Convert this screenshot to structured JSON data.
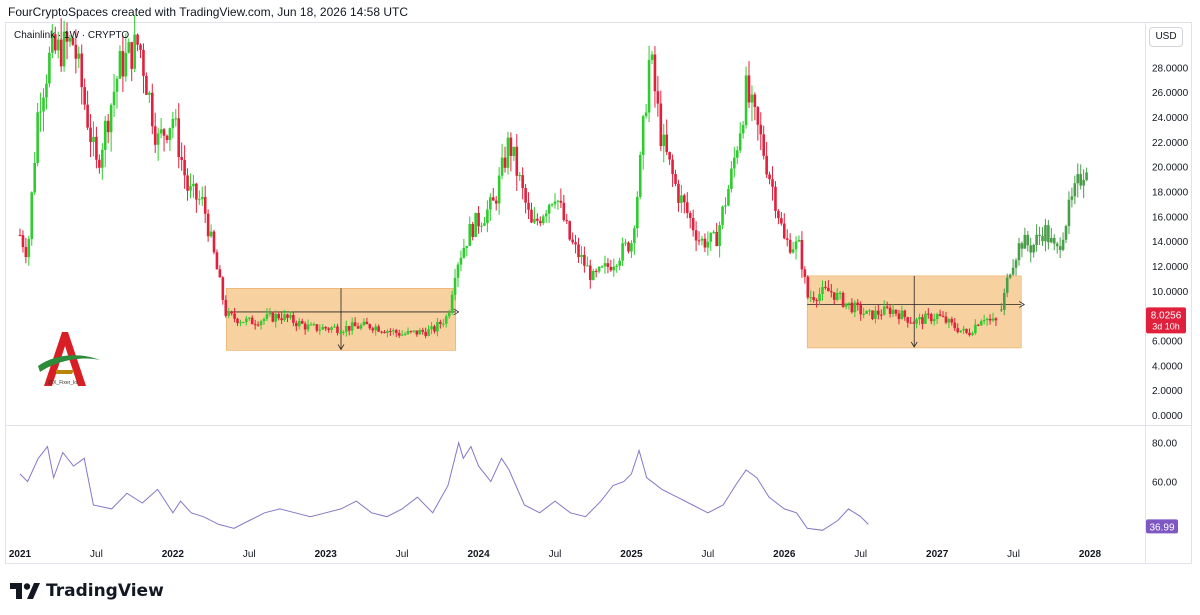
{
  "header_text": "FourCryptoSpaces created with TradingView.com, Jun 18, 2026 14:58 UTC",
  "symbol_label": "Chainlink · 1W · CRYPTO",
  "currency_button": "USD",
  "watermark_text": "@X_Fixer_kv",
  "footer_brand": "TradingView",
  "colors": {
    "up": "#2ecc2e",
    "down": "#e0203c",
    "projection": "#4a9e4a",
    "box": "#f7c990",
    "rsi": "#8478c8",
    "price_tag": "#e0203c",
    "rsi_tag": "#7e57c2"
  },
  "chart_data": [
    {
      "type": "candlestick",
      "title": "Chainlink · 1W · CRYPTO",
      "ylim": [
        0,
        31
      ],
      "y_ticks": [
        "28.0000",
        "26.0000",
        "24.0000",
        "22.0000",
        "20.0000",
        "18.0000",
        "16.0000",
        "14.0000",
        "12.0000",
        "10.0000",
        "6.0000",
        "4.0000",
        "2.0000",
        "0.0000"
      ],
      "x_ticks": [
        "2021",
        "Jul",
        "2022",
        "Jul",
        "2023",
        "Jul",
        "2024",
        "Jul",
        "2025",
        "Jul",
        "2026",
        "Jul",
        "2027",
        "Jul",
        "2028"
      ],
      "x_range_years": [
        2021.0,
        2028.0
      ],
      "price_path": [
        [
          2021.0,
          14.5
        ],
        [
          2021.05,
          13
        ],
        [
          2021.12,
          25
        ],
        [
          2021.2,
          29
        ],
        [
          2021.35,
          30
        ],
        [
          2021.5,
          20
        ],
        [
          2021.65,
          28
        ],
        [
          2021.78,
          30
        ],
        [
          2021.9,
          22
        ],
        [
          2022.0,
          24
        ],
        [
          2022.1,
          18
        ],
        [
          2022.2,
          17
        ],
        [
          2022.3,
          11
        ],
        [
          2022.35,
          8
        ],
        [
          2022.5,
          7.5
        ],
        [
          2022.7,
          8
        ],
        [
          2022.9,
          7
        ],
        [
          2023.1,
          7
        ],
        [
          2023.3,
          7.2
        ],
        [
          2023.5,
          6.5
        ],
        [
          2023.7,
          6.8
        ],
        [
          2023.8,
          8
        ],
        [
          2023.85,
          12
        ],
        [
          2023.95,
          15
        ],
        [
          2024.1,
          17
        ],
        [
          2024.2,
          22
        ],
        [
          2024.35,
          15
        ],
        [
          2024.5,
          18
        ],
        [
          2024.6,
          14
        ],
        [
          2024.75,
          11
        ],
        [
          2024.85,
          12
        ],
        [
          2025.0,
          14
        ],
        [
          2025.05,
          19
        ],
        [
          2025.12,
          29
        ],
        [
          2025.2,
          22
        ],
        [
          2025.3,
          18
        ],
        [
          2025.45,
          14
        ],
        [
          2025.55,
          14
        ],
        [
          2025.65,
          19
        ],
        [
          2025.75,
          26
        ],
        [
          2025.85,
          22
        ],
        [
          2025.95,
          17
        ],
        [
          2026.0,
          14
        ],
        [
          2026.1,
          13.5
        ],
        [
          2026.15,
          9.5
        ],
        [
          2026.3,
          10
        ],
        [
          2026.4,
          9
        ],
        [
          2026.55,
          8
        ],
        [
          2026.7,
          8.5
        ],
        [
          2026.85,
          7.5
        ],
        [
          2027.0,
          8
        ],
        [
          2027.1,
          7.2
        ],
        [
          2027.2,
          6.5
        ],
        [
          2027.3,
          8
        ],
        [
          2027.35,
          7.5
        ],
        [
          2027.4,
          7.5
        ]
      ],
      "projection_path": [
        [
          2027.42,
          8.5
        ],
        [
          2027.48,
          12
        ],
        [
          2027.55,
          14
        ],
        [
          2027.62,
          13.5
        ],
        [
          2027.7,
          15
        ],
        [
          2027.78,
          13
        ],
        [
          2027.85,
          16
        ],
        [
          2027.92,
          18.5
        ],
        [
          2027.98,
          20.5
        ]
      ],
      "consolidation_boxes": [
        {
          "x": [
            2022.35,
            2023.85
          ],
          "y": [
            5.2,
            10.2
          ]
        },
        {
          "x": [
            2026.15,
            2027.55
          ],
          "y": [
            5.4,
            11.2
          ]
        }
      ],
      "last_price": "8.0256",
      "countdown": "3d 10h"
    },
    {
      "type": "line",
      "title": "RSI",
      "ylim": [
        30,
        85
      ],
      "y_ticks": [
        "80.00",
        "60.00"
      ],
      "series": [
        {
          "values": [
            [
              2021.0,
              64
            ],
            [
              2021.05,
              60
            ],
            [
              2021.12,
              72
            ],
            [
              2021.18,
              78
            ],
            [
              2021.22,
              62
            ],
            [
              2021.28,
              75
            ],
            [
              2021.35,
              68
            ],
            [
              2021.42,
              72
            ],
            [
              2021.48,
              48
            ],
            [
              2021.6,
              46
            ],
            [
              2021.7,
              54
            ],
            [
              2021.8,
              49
            ],
            [
              2021.9,
              56
            ],
            [
              2022.0,
              44
            ],
            [
              2022.05,
              50
            ],
            [
              2022.12,
              44
            ],
            [
              2022.2,
              42
            ],
            [
              2022.3,
              38
            ],
            [
              2022.4,
              36
            ],
            [
              2022.5,
              40
            ],
            [
              2022.6,
              44
            ],
            [
              2022.7,
              46
            ],
            [
              2022.8,
              44
            ],
            [
              2022.9,
              42
            ],
            [
              2023.0,
              44
            ],
            [
              2023.1,
              46
            ],
            [
              2023.2,
              50
            ],
            [
              2023.3,
              44
            ],
            [
              2023.4,
              42
            ],
            [
              2023.5,
              46
            ],
            [
              2023.6,
              52
            ],
            [
              2023.7,
              44
            ],
            [
              2023.8,
              58
            ],
            [
              2023.87,
              80
            ],
            [
              2023.9,
              72
            ],
            [
              2023.95,
              78
            ],
            [
              2024.0,
              68
            ],
            [
              2024.08,
              60
            ],
            [
              2024.15,
              72
            ],
            [
              2024.2,
              66
            ],
            [
              2024.3,
              48
            ],
            [
              2024.4,
              44
            ],
            [
              2024.5,
              50
            ],
            [
              2024.6,
              44
            ],
            [
              2024.7,
              42
            ],
            [
              2024.8,
              50
            ],
            [
              2024.88,
              58
            ],
            [
              2024.95,
              60
            ],
            [
              2025.0,
              64
            ],
            [
              2025.05,
              76
            ],
            [
              2025.1,
              62
            ],
            [
              2025.2,
              56
            ],
            [
              2025.3,
              52
            ],
            [
              2025.4,
              48
            ],
            [
              2025.5,
              44
            ],
            [
              2025.6,
              48
            ],
            [
              2025.68,
              58
            ],
            [
              2025.75,
              66
            ],
            [
              2025.82,
              62
            ],
            [
              2025.9,
              52
            ],
            [
              2026.0,
              46
            ],
            [
              2026.08,
              44
            ],
            [
              2026.15,
              36
            ],
            [
              2026.25,
              35
            ],
            [
              2026.35,
              40
            ],
            [
              2026.42,
              46
            ],
            [
              2026.5,
              42
            ],
            [
              2026.55,
              38
            ]
          ]
        }
      ],
      "last_value": "36.99"
    }
  ]
}
